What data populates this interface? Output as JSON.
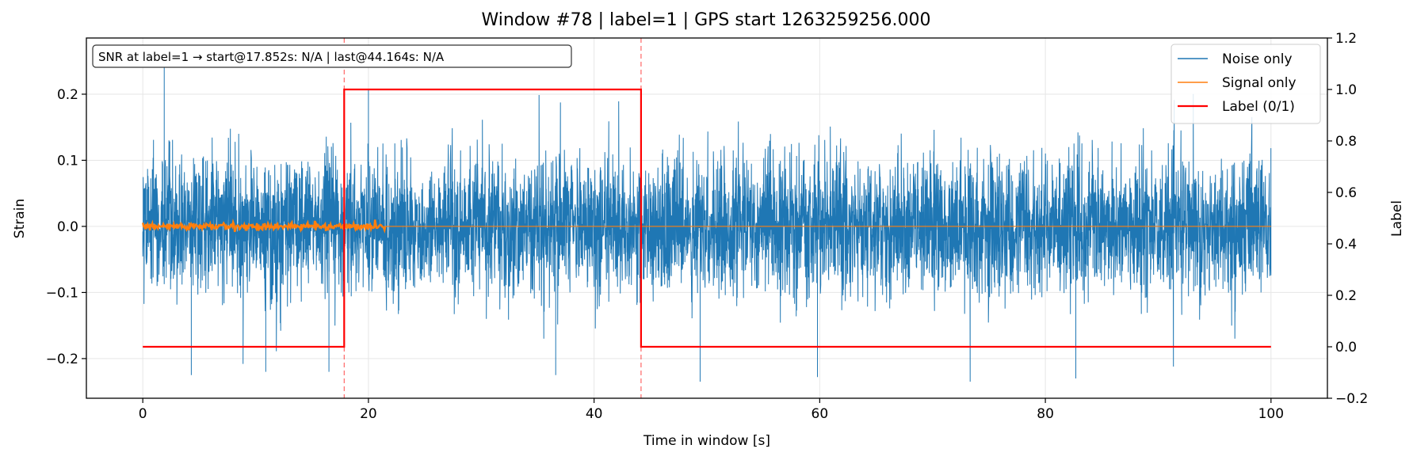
{
  "chart_data": {
    "type": "line",
    "title": "Window #78  |  label=1  |  GPS start 1263259256.000",
    "xlabel": "Time in window [s]",
    "ylabel": "Strain",
    "ylabel_right": "Label",
    "xlim": [
      -5,
      105
    ],
    "ylim": [
      -0.26,
      0.285
    ],
    "ylim_right": [
      -0.2,
      1.2
    ],
    "x_ticks": [
      0,
      20,
      40,
      60,
      80,
      100
    ],
    "y_ticks": [
      -0.2,
      -0.1,
      0.0,
      0.1,
      0.2
    ],
    "y_tick_labels": [
      "−0.2",
      "−0.1",
      "0.0",
      "0.1",
      "0.2"
    ],
    "y_right_ticks": [
      -0.2,
      0.0,
      0.2,
      0.4,
      0.6,
      0.8,
      1.0,
      1.2
    ],
    "y_right_tick_labels": [
      "−0.2",
      "0.0",
      "0.2",
      "0.4",
      "0.6",
      "0.8",
      "1.0",
      "1.2"
    ],
    "grid": true,
    "legend_position": "top-right",
    "annotation": "SNR at label=1 → start@17.852s: N/A | last@44.164s: N/A",
    "vlines": [
      17.852,
      44.164
    ],
    "series": [
      {
        "name": "Noise only",
        "color": "#1f77b4",
        "x_range": [
          0,
          100
        ],
        "typical_amplitude": 0.13,
        "min": -0.235,
        "max": 0.245
      },
      {
        "name": "Signal only",
        "color": "#ff7f0e",
        "x_range": [
          0,
          100
        ],
        "active_until": 21.5,
        "typical_amplitude": 0.004
      },
      {
        "name": "Label (0/1)",
        "color": "#ff0000",
        "x": [
          0,
          17.852,
          17.852,
          44.164,
          44.164,
          100
        ],
        "y": [
          0,
          0,
          1,
          1,
          0,
          0
        ]
      }
    ]
  }
}
